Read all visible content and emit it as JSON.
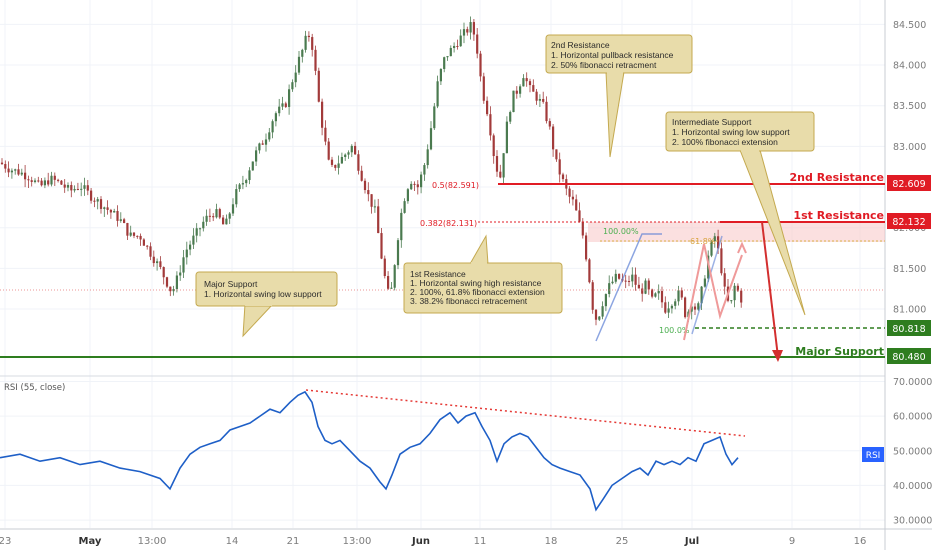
{
  "colors": {
    "background": "#ffffff",
    "grid": "#f0f3f8",
    "axis_text": "#7c7c7c",
    "candle_up": "#4a7a4f",
    "candle_down": "#a23a3a",
    "resistance": "#e01b24",
    "support": "#2e7d1f",
    "callout_fill": "#e8dcaa",
    "callout_border": "#c4a94f",
    "rsi_line": "#1e5fc7",
    "rsi_trend": "#e53935",
    "rsi_badge": "#2962ff",
    "fib_blue": "#5b7fd4",
    "zone_pink": "#f7c6c6",
    "arrow_pink": "#ef9a9a"
  },
  "chart_data": [
    {
      "type": "candlestick",
      "panel": "price",
      "x_tick_labels": [
        "23",
        "May",
        "13:00",
        "14",
        "21",
        "13:00",
        "Jun",
        "11",
        "18",
        "25",
        "Jul",
        "9",
        "16"
      ],
      "y_tick_labels": [
        "84.500",
        "84.000",
        "83.500",
        "83.000",
        "82.500",
        "82.000",
        "81.500",
        "81.000"
      ],
      "ylim": [
        80.25,
        84.8
      ],
      "price_path": [
        [
          0,
          82.8
        ],
        [
          10,
          82.72
        ],
        [
          20,
          82.68
        ],
        [
          30,
          82.62
        ],
        [
          40,
          82.5
        ],
        [
          50,
          82.6
        ],
        [
          60,
          82.55
        ],
        [
          70,
          82.45
        ],
        [
          80,
          82.52
        ],
        [
          90,
          82.4
        ],
        [
          100,
          82.3
        ],
        [
          110,
          82.2
        ],
        [
          120,
          82.1
        ],
        [
          130,
          81.9
        ],
        [
          140,
          81.9
        ],
        [
          150,
          81.7
        ],
        [
          160,
          81.5
        ],
        [
          168,
          81.3
        ],
        [
          172,
          81.2
        ],
        [
          178,
          81.4
        ],
        [
          185,
          81.7
        ],
        [
          195,
          81.9
        ],
        [
          205,
          82.1
        ],
        [
          215,
          82.2
        ],
        [
          225,
          82.0
        ],
        [
          235,
          82.4
        ],
        [
          245,
          82.6
        ],
        [
          255,
          82.9
        ],
        [
          265,
          83.1
        ],
        [
          275,
          83.4
        ],
        [
          285,
          83.5
        ],
        [
          292,
          83.8
        ],
        [
          297,
          84.0
        ],
        [
          303,
          84.2
        ],
        [
          308,
          84.4
        ],
        [
          313,
          84.2
        ],
        [
          318,
          83.6
        ],
        [
          323,
          83.2
        ],
        [
          330,
          82.7
        ],
        [
          338,
          82.8
        ],
        [
          345,
          82.9
        ],
        [
          352,
          83.0
        ],
        [
          360,
          82.7
        ],
        [
          368,
          82.4
        ],
        [
          375,
          82.2
        ],
        [
          382,
          81.6
        ],
        [
          386,
          81.3
        ],
        [
          390,
          81.1
        ],
        [
          395,
          81.6
        ],
        [
          400,
          82.1
        ],
        [
          405,
          82.4
        ],
        [
          410,
          82.6
        ],
        [
          418,
          82.5
        ],
        [
          425,
          82.8
        ],
        [
          432,
          83.3
        ],
        [
          438,
          83.8
        ],
        [
          445,
          84.1
        ],
        [
          452,
          84.2
        ],
        [
          458,
          84.3
        ],
        [
          465,
          84.4
        ],
        [
          472,
          84.5
        ],
        [
          477,
          84.2
        ],
        [
          482,
          83.7
        ],
        [
          488,
          83.4
        ],
        [
          495,
          82.8
        ],
        [
          500,
          82.6
        ],
        [
          506,
          83.2
        ],
        [
          512,
          83.6
        ],
        [
          518,
          83.7
        ],
        [
          523,
          83.9
        ],
        [
          530,
          83.7
        ],
        [
          537,
          83.6
        ],
        [
          543,
          83.5
        ],
        [
          550,
          83.2
        ],
        [
          556,
          82.8
        ],
        [
          562,
          82.6
        ],
        [
          568,
          82.4
        ],
        [
          574,
          82.3
        ],
        [
          578,
          82.1
        ],
        [
          583,
          81.9
        ],
        [
          588,
          81.5
        ],
        [
          593,
          81.0
        ],
        [
          597,
          80.85
        ],
        [
          603,
          81.1
        ],
        [
          610,
          81.3
        ],
        [
          617,
          81.4
        ],
        [
          625,
          81.3
        ],
        [
          632,
          81.4
        ],
        [
          640,
          81.2
        ],
        [
          646,
          81.3
        ],
        [
          652,
          81.1
        ],
        [
          658,
          81.2
        ],
        [
          665,
          81.0
        ],
        [
          672,
          81.1
        ],
        [
          680,
          81.2
        ],
        [
          686,
          80.9
        ],
        [
          692,
          81.1
        ],
        [
          697,
          80.95
        ],
        [
          703,
          81.3
        ],
        [
          709,
          81.7
        ],
        [
          715,
          81.9
        ],
        [
          720,
          81.6
        ],
        [
          725,
          81.2
        ],
        [
          730,
          81.0
        ],
        [
          735,
          81.3
        ],
        [
          742,
          81.1
        ]
      ],
      "levels": [
        {
          "name": "2nd Resistance",
          "value": "82.609"
        },
        {
          "name": "1st Resistance",
          "value": "82.132"
        },
        {
          "name": "Major Support",
          "value": "80.480"
        },
        {
          "value": "80.818"
        }
      ],
      "fib_labels": [
        "0.5(82.591)",
        "0.382(82.131)",
        "100.00%",
        "61.8%",
        "100.0%"
      ],
      "annotations": [
        {
          "name": "major-support-callout",
          "lines": [
            "Major Support",
            "1. Horizontal swing low support"
          ]
        },
        {
          "name": "first-resistance-callout",
          "lines": [
            "1st Resistance",
            "1. Horizontal swing high resistance",
            "2. 100%, 61.8% fibonacci extension",
            "3. 38.2% fibonacci retracement"
          ]
        },
        {
          "name": "second-resistance-callout",
          "lines": [
            "2nd Resistance",
            "1. Horizontal pullback resistance",
            "2. 50% fibonacci retracment"
          ]
        },
        {
          "name": "intermediate-support-callout",
          "lines": [
            "Intermediate Support",
            "1. Horizontal swing low support",
            "2. 100% fibonacci extension"
          ]
        }
      ]
    },
    {
      "type": "line",
      "panel": "rsi",
      "legend": "RSI (55, close)",
      "badge": "RSI",
      "y_tick_labels": [
        "70.0000",
        "60.0000",
        "50.0000",
        "40.0000",
        "30.0000"
      ],
      "ylim": [
        28,
        71
      ],
      "path": [
        [
          0,
          48
        ],
        [
          20,
          49
        ],
        [
          40,
          47
        ],
        [
          60,
          48
        ],
        [
          80,
          46
        ],
        [
          100,
          47
        ],
        [
          120,
          45
        ],
        [
          140,
          44
        ],
        [
          160,
          42
        ],
        [
          170,
          39
        ],
        [
          180,
          45
        ],
        [
          190,
          49
        ],
        [
          200,
          51
        ],
        [
          210,
          52
        ],
        [
          220,
          53
        ],
        [
          230,
          56
        ],
        [
          240,
          57
        ],
        [
          250,
          58
        ],
        [
          260,
          60
        ],
        [
          270,
          62
        ],
        [
          280,
          61
        ],
        [
          290,
          64
        ],
        [
          298,
          66
        ],
        [
          305,
          67
        ],
        [
          312,
          64
        ],
        [
          318,
          57
        ],
        [
          325,
          53
        ],
        [
          332,
          52
        ],
        [
          340,
          53
        ],
        [
          350,
          50
        ],
        [
          360,
          47
        ],
        [
          370,
          45
        ],
        [
          380,
          41
        ],
        [
          386,
          39
        ],
        [
          392,
          43
        ],
        [
          400,
          49
        ],
        [
          410,
          51
        ],
        [
          420,
          52
        ],
        [
          430,
          55
        ],
        [
          440,
          59
        ],
        [
          450,
          61
        ],
        [
          458,
          58
        ],
        [
          466,
          60
        ],
        [
          475,
          61
        ],
        [
          482,
          57
        ],
        [
          490,
          53
        ],
        [
          497,
          47
        ],
        [
          504,
          52
        ],
        [
          512,
          54
        ],
        [
          520,
          55
        ],
        [
          528,
          54
        ],
        [
          536,
          51
        ],
        [
          544,
          48
        ],
        [
          552,
          46
        ],
        [
          560,
          45
        ],
        [
          570,
          44
        ],
        [
          580,
          43
        ],
        [
          590,
          39
        ],
        [
          596,
          33
        ],
        [
          603,
          36
        ],
        [
          612,
          40
        ],
        [
          622,
          42
        ],
        [
          632,
          44
        ],
        [
          640,
          45
        ],
        [
          648,
          43
        ],
        [
          656,
          47
        ],
        [
          664,
          46
        ],
        [
          672,
          47
        ],
        [
          680,
          46
        ],
        [
          688,
          48
        ],
        [
          696,
          47
        ],
        [
          704,
          52
        ],
        [
          712,
          53
        ],
        [
          720,
          54
        ],
        [
          726,
          49
        ],
        [
          732,
          46
        ],
        [
          738,
          48
        ]
      ]
    }
  ]
}
